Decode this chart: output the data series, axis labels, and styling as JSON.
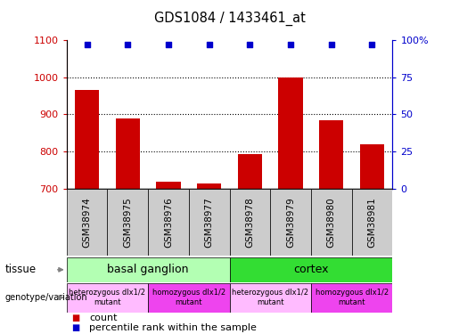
{
  "title": "GDS1084 / 1433461_at",
  "samples": [
    "GSM38974",
    "GSM38975",
    "GSM38976",
    "GSM38977",
    "GSM38978",
    "GSM38979",
    "GSM38980",
    "GSM38981"
  ],
  "counts": [
    965,
    888,
    718,
    714,
    793,
    1000,
    885,
    820
  ],
  "percentile_ranks": [
    97,
    97,
    97,
    97,
    97,
    97,
    97,
    97
  ],
  "ylim": [
    700,
    1100
  ],
  "yticks": [
    700,
    800,
    900,
    1000,
    1100
  ],
  "y2ticks": [
    0,
    25,
    50,
    75,
    100
  ],
  "bar_color": "#cc0000",
  "dot_color": "#0000cc",
  "tissue_row": [
    {
      "label": "basal ganglion",
      "start": 0,
      "end": 4,
      "color": "#b3ffb3"
    },
    {
      "label": "cortex",
      "start": 4,
      "end": 8,
      "color": "#33dd33"
    }
  ],
  "genotype_row": [
    {
      "label": "heterozygous dlx1/2\nmutant",
      "start": 0,
      "end": 2,
      "color": "#ffbbff"
    },
    {
      "label": "homozygous dlx1/2\nmutant",
      "start": 2,
      "end": 4,
      "color": "#ee44ee"
    },
    {
      "label": "heterozygous dlx1/2\nmutant",
      "start": 4,
      "end": 6,
      "color": "#ffbbff"
    },
    {
      "label": "homozygous dlx1/2\nmutant",
      "start": 6,
      "end": 8,
      "color": "#ee44ee"
    }
  ],
  "sample_bg_color": "#cccccc",
  "legend_count_color": "#cc0000",
  "legend_percentile_color": "#0000cc"
}
